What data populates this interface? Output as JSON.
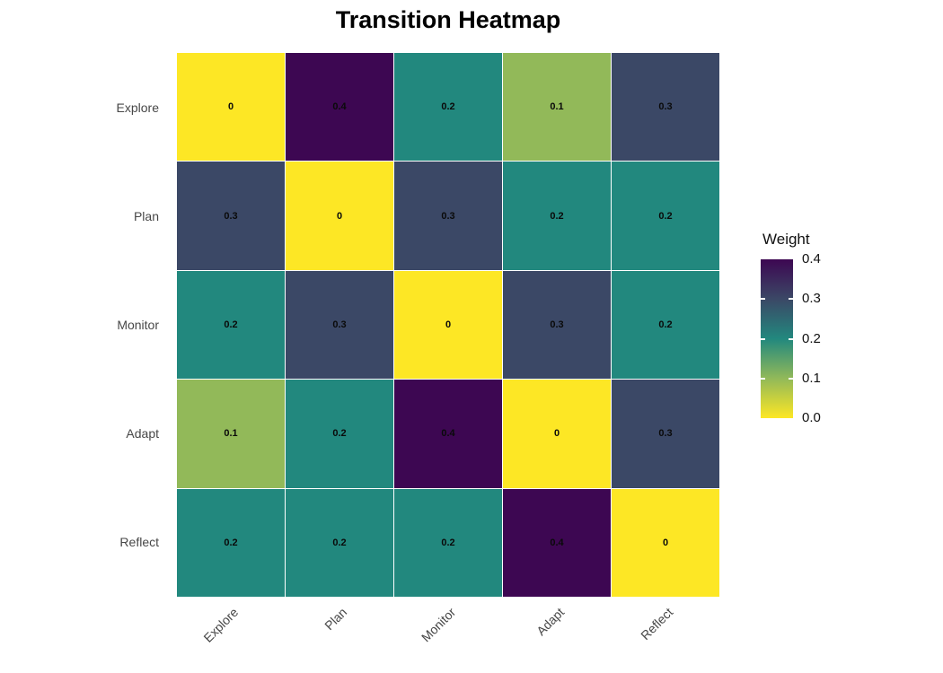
{
  "chart_data": {
    "type": "heatmap",
    "title": "Transition Heatmap",
    "legend_title": "Weight",
    "x_categories": [
      "Explore",
      "Plan",
      "Monitor",
      "Adapt",
      "Reflect"
    ],
    "y_categories": [
      "Explore",
      "Plan",
      "Monitor",
      "Adapt",
      "Reflect"
    ],
    "values": [
      [
        0,
        0.4,
        0.2,
        0.1,
        0.3
      ],
      [
        0.3,
        0,
        0.3,
        0.2,
        0.2
      ],
      [
        0.2,
        0.3,
        0,
        0.3,
        0.2
      ],
      [
        0.1,
        0.2,
        0.4,
        0,
        0.3
      ],
      [
        0.2,
        0.2,
        0.2,
        0.4,
        0
      ]
    ],
    "cell_labels": [
      [
        "0",
        "0.4",
        "0.2",
        "0.1",
        "0.3"
      ],
      [
        "0.3",
        "0",
        "0.3",
        "0.2",
        "0.2"
      ],
      [
        "0.2",
        "0.3",
        "0",
        "0.3",
        "0.2"
      ],
      [
        "0.1",
        "0.2",
        "0.4",
        "0",
        "0.3"
      ],
      [
        "0.2",
        "0.2",
        "0.2",
        "0.4",
        "0"
      ]
    ],
    "color_range": [
      0,
      0.4
    ],
    "palette": "viridis reversed (0 = yellow, 0.4 = dark purple)",
    "color_map": {
      "0": "#FDE725",
      "0.1": "#92B959",
      "0.2": "#22887E",
      "0.3": "#3B4866",
      "0.4": "#3D0752"
    },
    "colorbar_gradient_top_to_bottom": [
      "#3D0752",
      "#3B4866",
      "#22887E",
      "#92B959",
      "#FDE725"
    ],
    "colorbar_ticks": [
      "0.4",
      "0.3",
      "0.2",
      "0.1",
      "0.0"
    ],
    "grid": false,
    "legend_position": "right"
  }
}
